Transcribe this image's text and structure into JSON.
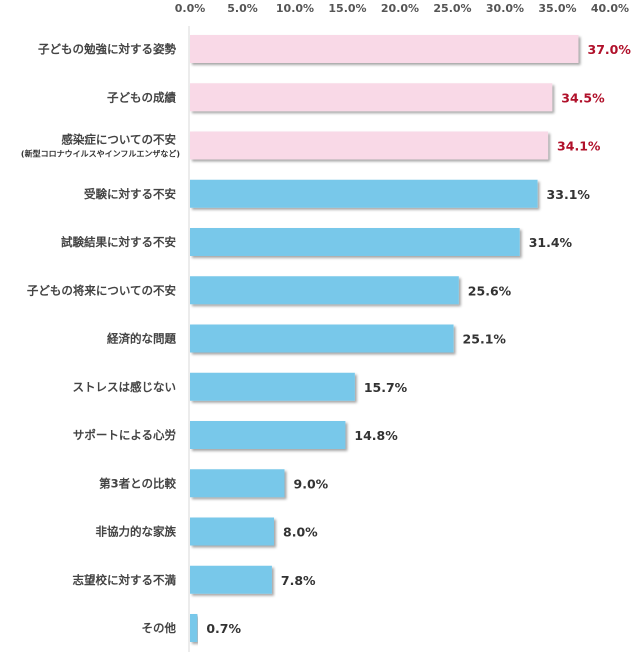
{
  "chart_data": {
    "type": "bar",
    "orientation": "horizontal",
    "xlim": [
      0,
      40
    ],
    "x_ticks": [
      "0.0%",
      "5.0%",
      "10.0%",
      "15.0%",
      "20.0%",
      "25.0%",
      "30.0%",
      "35.0%",
      "40.0%"
    ],
    "x_tick_values": [
      0,
      5,
      10,
      15,
      20,
      25,
      30,
      35,
      40
    ],
    "axis_position": "top",
    "grid": false,
    "categories": [
      {
        "label": "子どもの勉強に対する姿勢",
        "sub": ""
      },
      {
        "label": "子どもの成績",
        "sub": ""
      },
      {
        "label": "感染症についての不安",
        "sub": "(新型コロナウイルスやインフルエンザなど)"
      },
      {
        "label": "受験に対する不安",
        "sub": ""
      },
      {
        "label": "試験結果に対する不安",
        "sub": ""
      },
      {
        "label": "子どもの将来についての不安",
        "sub": ""
      },
      {
        "label": "経済的な問題",
        "sub": ""
      },
      {
        "label": "ストレスは感じない",
        "sub": ""
      },
      {
        "label": "サポートによる心労",
        "sub": ""
      },
      {
        "label": "第3者との比較",
        "sub": ""
      },
      {
        "label": "非協力的な家族",
        "sub": ""
      },
      {
        "label": "志望校に対する不満",
        "sub": ""
      },
      {
        "label": "その他",
        "sub": ""
      }
    ],
    "values": [
      37.0,
      34.5,
      34.1,
      33.1,
      31.4,
      25.6,
      25.1,
      15.7,
      14.8,
      9.0,
      8.0,
      7.8,
      0.7
    ],
    "value_labels": [
      "37.0%",
      "34.5%",
      "34.1%",
      "33.1%",
      "31.4%",
      "25.6%",
      "25.1%",
      "15.7%",
      "14.8%",
      "9.0%",
      "8.0%",
      "7.8%",
      "0.7%"
    ],
    "highlighted_count": 3,
    "colors": {
      "highlight_bar": "#f9d9e7",
      "bar": "#78c8ea",
      "highlight_label": "#b0102a",
      "label": "#333333",
      "axis": "#d9d9d9"
    }
  }
}
